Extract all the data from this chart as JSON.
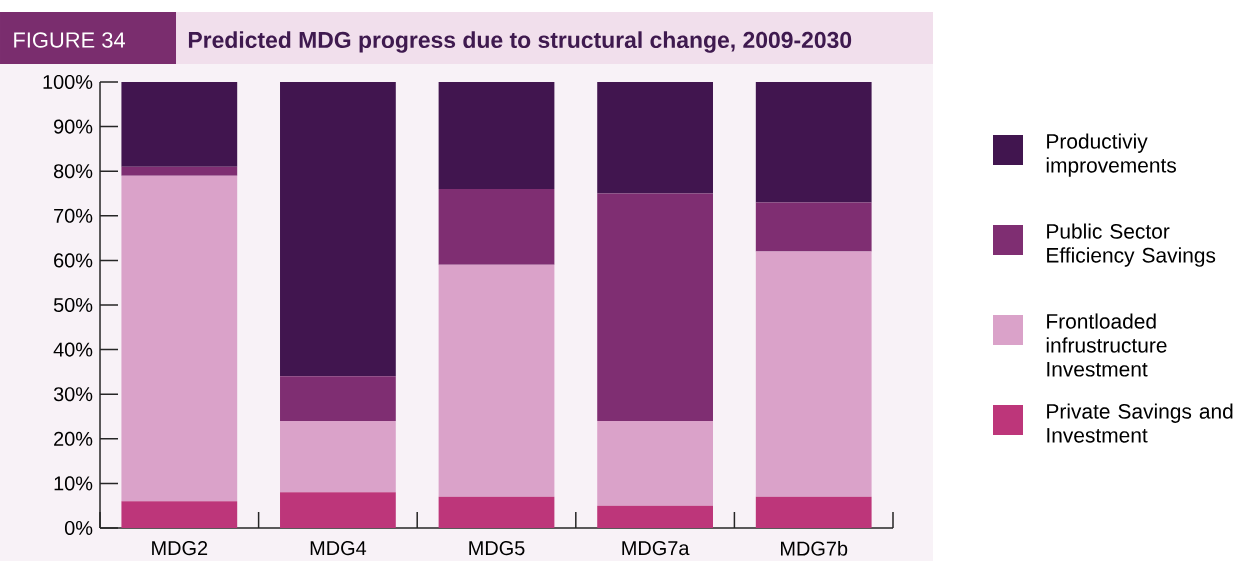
{
  "chart_data": {
    "type": "bar",
    "title": "Predicted MDG progress due to structural change, 2009-2030",
    "annotations": [
      "FIGURE 34"
    ],
    "categories": [
      "MDG2",
      "MDG4",
      "MDG5",
      "MDG7a",
      "MDG7b"
    ],
    "stacked": true,
    "series": [
      {
        "name": "Private Savings and Investment",
        "color": "#bd367a",
        "values": [
          6,
          8,
          7,
          5,
          7
        ]
      },
      {
        "name": "Frontloaded infrustructure Investment",
        "color": "#daa2c9",
        "values": [
          73,
          16,
          52,
          19,
          55
        ]
      },
      {
        "name": "Public Sector Efficiency Savings",
        "color": "#7f2e72",
        "values": [
          2,
          10,
          17,
          51,
          11
        ]
      },
      {
        "name": "Productiviy improvements",
        "color": "#41154f",
        "values": [
          19,
          66,
          24,
          25,
          27
        ]
      }
    ],
    "ylim": [
      0,
      100
    ],
    "yticks": [
      {
        "value": 0,
        "label": "0%"
      },
      {
        "value": 10,
        "label": "10%"
      },
      {
        "value": 20,
        "label": "20%"
      },
      {
        "value": 30,
        "label": "30%"
      },
      {
        "value": 40,
        "label": "40%"
      },
      {
        "value": 50,
        "label": "50%"
      },
      {
        "value": 60,
        "label": "60%"
      },
      {
        "value": 70,
        "label": "70%"
      },
      {
        "value": 80,
        "label": "80%"
      },
      {
        "value": 90,
        "label": "90%"
      },
      {
        "value": 100,
        "label": "100%"
      }
    ],
    "grid": false,
    "legend": "right"
  }
}
